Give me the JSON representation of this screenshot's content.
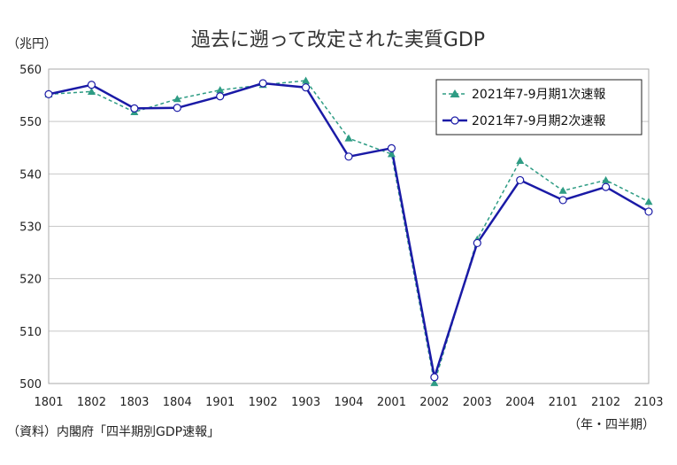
{
  "chart_data": {
    "type": "line",
    "title": "過去に遡って改定された実質GDP",
    "ylabel": "（兆円）",
    "xlabel": "（年・四半期）",
    "source": "（資料）内閣府「四半期別GDP速報」",
    "categories": [
      "1801",
      "1802",
      "1803",
      "1804",
      "1901",
      "1902",
      "1903",
      "1904",
      "2001",
      "2002",
      "2003",
      "2004",
      "2101",
      "2102",
      "2103"
    ],
    "ylim": [
      500,
      560
    ],
    "yticks": [
      500,
      510,
      520,
      530,
      540,
      550,
      560
    ],
    "grid": true,
    "legend_position": "top-right",
    "series": [
      {
        "name": "2021年7-9月期1次速報",
        "color": "#2e9c84",
        "style": "dashed-triangle",
        "values": [
          555.2,
          555.7,
          551.8,
          554.3,
          556.0,
          557.0,
          557.8,
          546.8,
          543.8,
          500.1,
          527.5,
          542.5,
          536.8,
          538.8,
          534.7
        ]
      },
      {
        "name": "2021年7-9月期2次速報",
        "color": "#1a1aa6",
        "style": "solid-circle",
        "values": [
          555.2,
          557.0,
          552.5,
          552.6,
          554.8,
          557.3,
          556.5,
          543.3,
          544.9,
          501.2,
          526.8,
          538.8,
          535.0,
          537.5,
          532.8
        ]
      }
    ]
  }
}
